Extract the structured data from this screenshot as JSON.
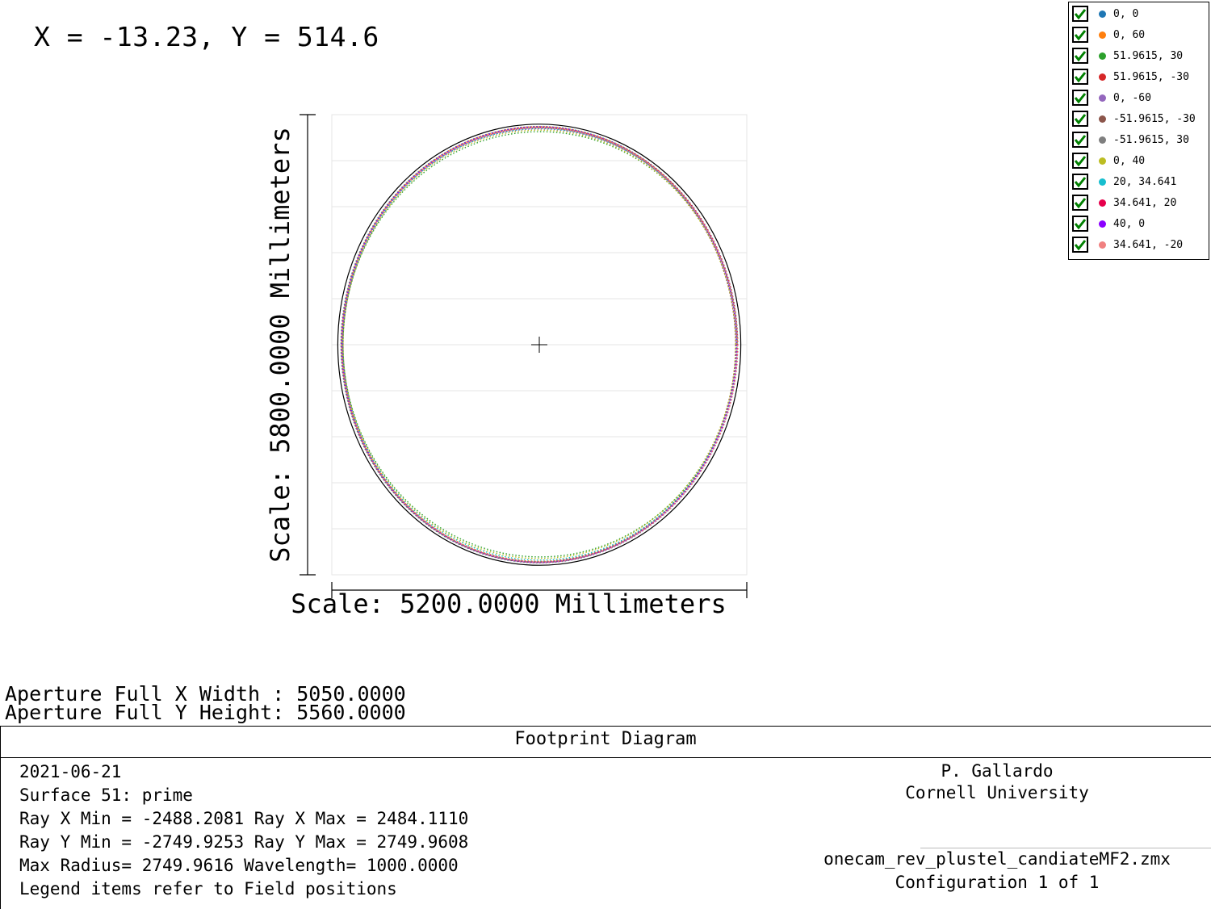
{
  "readout": {
    "text": "X = -13.23, Y = 514.6"
  },
  "chart_data": {
    "type": "scatter",
    "title": "Footprint Diagram",
    "xlabel": "Scale: 5200.0000 Millimeters",
    "ylabel": "Scale: 5800.0000 Millimeters",
    "xlim": [
      -2600,
      2600
    ],
    "ylim": [
      -2900,
      2900
    ],
    "grid": true,
    "aperture": {
      "x_width": 5050.0,
      "y_height": 5560.0,
      "color": "#000000"
    },
    "legend_position": "top-right",
    "series": [
      {
        "name": "0, 0",
        "color": "#1f77b4",
        "cx": 0,
        "cy": 0,
        "rx": 2485,
        "ry": 2750
      },
      {
        "name": "0, 60",
        "color": "#ff7f0e",
        "cx": 0,
        "cy": 10,
        "rx": 2470,
        "ry": 2740
      },
      {
        "name": "51.9615, 30",
        "color": "#2ca02c",
        "cx": 10,
        "cy": 5,
        "rx": 2470,
        "ry": 2680
      },
      {
        "name": "51.9615, -30",
        "color": "#d62728",
        "cx": 10,
        "cy": -5,
        "rx": 2470,
        "ry": 2740
      },
      {
        "name": "0, -60",
        "color": "#9467bd",
        "cx": 0,
        "cy": -10,
        "rx": 2480,
        "ry": 2730
      },
      {
        "name": "-51.9615, -30",
        "color": "#8c564b",
        "cx": -10,
        "cy": -5,
        "rx": 2470,
        "ry": 2740
      },
      {
        "name": "-51.9615, 30",
        "color": "#7f7f7f",
        "cx": -10,
        "cy": 5,
        "rx": 2470,
        "ry": 2740
      },
      {
        "name": "0, 40",
        "color": "#bcbd22",
        "cx": 0,
        "cy": 5,
        "rx": 2460,
        "ry": 2700
      },
      {
        "name": "20, 34.641",
        "color": "#17becf",
        "cx": 5,
        "cy": 5,
        "rx": 2470,
        "ry": 2720
      },
      {
        "name": "34.641, 20",
        "color": "#e6004c",
        "cx": 5,
        "cy": 0,
        "rx": 2480,
        "ry": 2740
      },
      {
        "name": "40, 0",
        "color": "#8b00ff",
        "cx": 0,
        "cy": 0,
        "rx": 2470,
        "ry": 2745
      },
      {
        "name": "34.641, -20",
        "color": "#f08080",
        "cx": 5,
        "cy": -5,
        "rx": 2480,
        "ry": 2740
      }
    ]
  },
  "stats": {
    "line1": "Aperture Full X Width : 5050.0000",
    "line2": "Aperture Full Y Height: 5560.0000"
  },
  "footer": {
    "title": "Footprint Diagram",
    "date": "2021-06-21",
    "surface": "Surface 51: prime",
    "ray_x": "Ray X Min = -2488.2081 Ray X Max = 2484.1110",
    "ray_y": "Ray Y Min = -2749.9253 Ray Y Max = 2749.9608",
    "radius": "Max Radius= 2749.9616 Wavelength= 1000.0000",
    "legend_note": "Legend items refer to Field positions",
    "author": "P. Gallardo",
    "org": "Cornell University",
    "file": "onecam_rev_plustel_candiateMF2.zmx",
    "config": "Configuration 1 of 1"
  }
}
